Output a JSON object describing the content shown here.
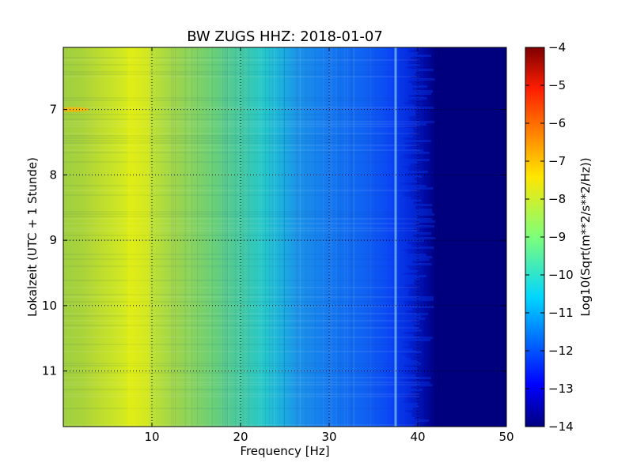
{
  "chart_data": {
    "type": "heatmap",
    "title": "BW ZUGS HHZ: 2018-01-07",
    "xlabel": "Frequency [Hz]",
    "ylabel": "Lokalzeit (UTC + 1 Stunde)",
    "colorbar_label": "Log10(Sqrt(m**2/s**2/Hz))",
    "xlim": [
      0,
      50
    ],
    "ylim_hours": [
      6.05,
      11.85
    ],
    "y_inverted": true,
    "x_ticks": [
      "10",
      "20",
      "30",
      "40",
      "50"
    ],
    "x_tick_values": [
      10,
      20,
      30,
      40,
      50
    ],
    "y_ticks": [
      "7",
      "8",
      "9",
      "10",
      "11"
    ],
    "y_tick_values": [
      7,
      8,
      9,
      10,
      11
    ],
    "colorbar_range": [
      -14,
      -4
    ],
    "colorbar_ticks": [
      "−4",
      "−5",
      "−6",
      "−7",
      "−8",
      "−9",
      "−10",
      "−11",
      "−12",
      "−13",
      "−14"
    ],
    "colorbar_tick_values": [
      -4,
      -5,
      -6,
      -7,
      -8,
      -9,
      -10,
      -11,
      -12,
      -13,
      -14
    ],
    "colormap": "jet",
    "grid": true,
    "frequency_profile": {
      "frequency_hz": [
        0,
        2,
        5,
        7,
        8.5,
        10,
        13,
        16,
        20,
        23,
        24.5,
        26,
        30,
        34,
        37,
        39,
        41,
        42,
        50
      ],
      "log10_psd": [
        -8.9,
        -9.0,
        -8.6,
        -8.2,
        -8.0,
        -8.4,
        -8.9,
        -9.3,
        -9.7,
        -9.9,
        -10.2,
        -10.9,
        -11.2,
        -11.6,
        -12.1,
        -12.7,
        -13.3,
        -13.9,
        -13.9
      ]
    },
    "features": [
      {
        "frequency_hz": 8.5,
        "note": "strong band around 8-9 Hz"
      },
      {
        "frequency_hz": 37.5,
        "note": "narrow band near 37.5 Hz"
      },
      {
        "time_hour": 7.0,
        "frequency_hz": 1.0,
        "note": "high value near 7 h at low frequency"
      }
    ]
  }
}
